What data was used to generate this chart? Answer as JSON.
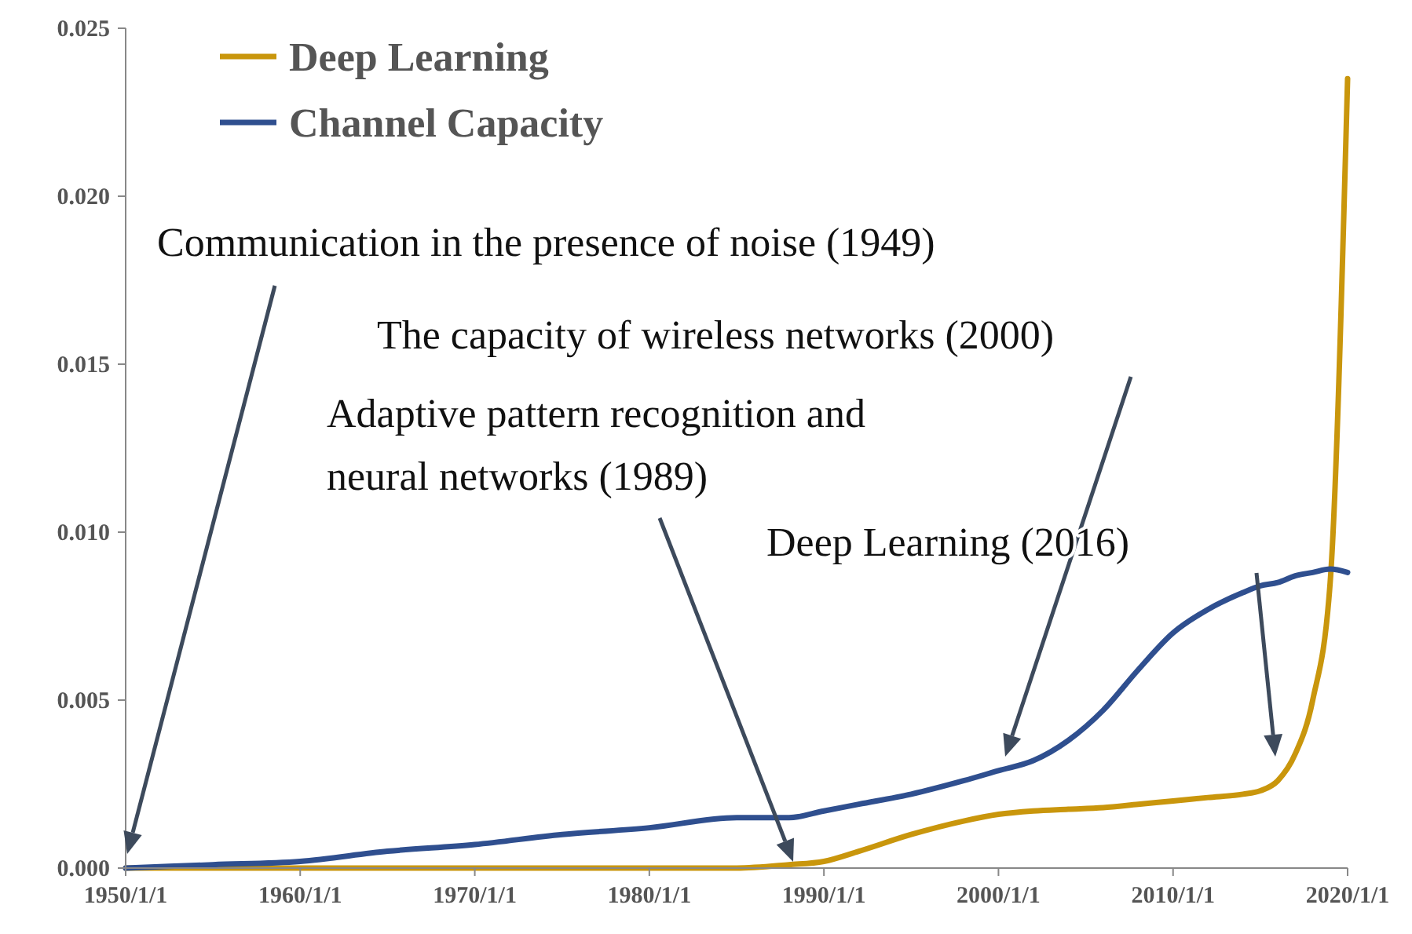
{
  "chart_data": {
    "type": "line",
    "x": [
      "1950",
      "1955",
      "1960",
      "1965",
      "1970",
      "1975",
      "1980",
      "1985",
      "1988",
      "1990",
      "1992",
      "1995",
      "1998",
      "2000",
      "2002",
      "2004",
      "2006",
      "2008",
      "2010",
      "2012",
      "2014",
      "2015",
      "2016",
      "2017",
      "2018",
      "2019",
      "2020"
    ],
    "series": [
      {
        "name": "Deep Learning",
        "color": "#c9960c",
        "values": [
          0,
          0,
          0,
          0,
          0,
          0,
          0,
          0,
          0.0001,
          0.0002,
          0.0005,
          0.001,
          0.0014,
          0.0016,
          0.0017,
          0.00175,
          0.0018,
          0.0019,
          0.002,
          0.0021,
          0.0022,
          0.0023,
          0.0026,
          0.0034,
          0.005,
          0.0085,
          0.0235
        ]
      },
      {
        "name": "Channel Capacity",
        "color": "#2f4f8f",
        "values": [
          0,
          0.0001,
          0.0002,
          0.0005,
          0.0007,
          0.001,
          0.0012,
          0.0015,
          0.0015,
          0.0017,
          0.0019,
          0.0022,
          0.0026,
          0.0029,
          0.0032,
          0.0038,
          0.0047,
          0.0059,
          0.007,
          0.0077,
          0.0082,
          0.0084,
          0.0085,
          0.0087,
          0.0088,
          0.0089,
          0.0088
        ]
      }
    ],
    "xlim": [
      "1950",
      "2020"
    ],
    "xticks": [
      {
        "value": "1950",
        "label": "1950/1/1"
      },
      {
        "value": "1960",
        "label": "1960/1/1"
      },
      {
        "value": "1970",
        "label": "1970/1/1"
      },
      {
        "value": "1980",
        "label": "1980/1/1"
      },
      {
        "value": "1990",
        "label": "1990/1/1"
      },
      {
        "value": "2000",
        "label": "2000/1/1"
      },
      {
        "value": "2010",
        "label": "2010/1/1"
      },
      {
        "value": "2020",
        "label": "2020/1/1"
      }
    ],
    "ylim": [
      0,
      0.025
    ],
    "yticks": [
      {
        "value": 0,
        "label": "0.000"
      },
      {
        "value": 0.005,
        "label": "0.005"
      },
      {
        "value": 0.01,
        "label": "0.010"
      },
      {
        "value": 0.015,
        "label": "0.015"
      },
      {
        "value": 0.02,
        "label": "0.020"
      },
      {
        "value": 0.025,
        "label": "0.025"
      }
    ],
    "annotations": [
      "Communication in the presence of noise (1949)",
      "The capacity of wireless networks (2000)",
      "Adaptive pattern recognition and\nneural networks (1989)",
      "Deep Learning (2016)"
    ],
    "legend": "top left",
    "grid": false,
    "marker": "none",
    "line_style": "solid"
  }
}
